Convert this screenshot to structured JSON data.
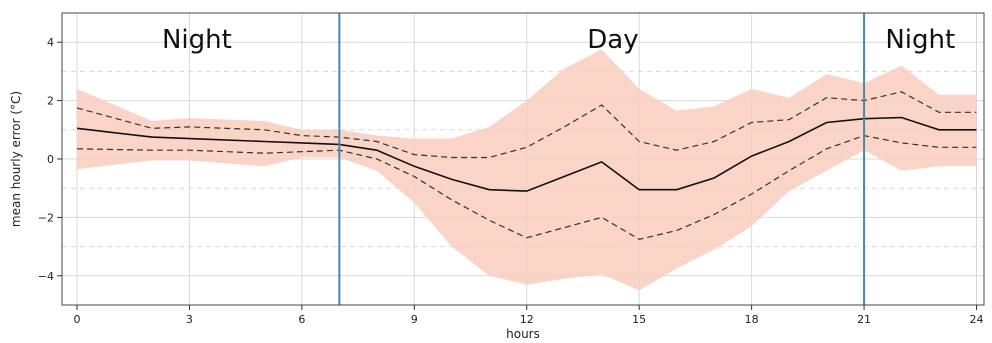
{
  "chart_data": {
    "type": "line",
    "xlabel": "hours",
    "ylabel": "mean hourly error (°C)",
    "xlim": [
      -0.4,
      24.2
    ],
    "ylim": [
      -5,
      5
    ],
    "xticks": [
      0,
      3,
      6,
      9,
      12,
      15,
      18,
      21,
      24
    ],
    "yticks": [
      -4,
      -2,
      0,
      2,
      4
    ],
    "grid": true,
    "x": [
      0,
      2,
      3,
      5,
      6,
      7,
      8,
      9,
      10,
      11,
      12,
      13,
      14,
      15,
      16,
      17,
      18,
      19,
      20,
      21,
      22,
      23,
      24
    ],
    "series": [
      {
        "role": "mean",
        "style": "solid",
        "color": "#111111",
        "values": [
          1.05,
          0.75,
          0.7,
          0.6,
          0.55,
          0.5,
          0.3,
          -0.25,
          -0.7,
          -1.05,
          -1.1,
          -0.6,
          -0.1,
          -1.05,
          -1.05,
          -0.65,
          0.1,
          0.6,
          1.25,
          1.38,
          1.42,
          1.0,
          1.0
        ]
      },
      {
        "role": "upper",
        "style": "dashed",
        "color": "#333333",
        "values": [
          1.75,
          1.05,
          1.1,
          1.0,
          0.8,
          0.75,
          0.6,
          0.15,
          0.05,
          0.05,
          0.4,
          1.1,
          1.85,
          0.6,
          0.3,
          0.6,
          1.25,
          1.35,
          2.1,
          2.0,
          2.3,
          1.6,
          1.6
        ]
      },
      {
        "role": "lower",
        "style": "dashed",
        "color": "#333333",
        "values": [
          0.35,
          0.3,
          0.3,
          0.2,
          0.25,
          0.3,
          0.0,
          -0.6,
          -1.4,
          -2.1,
          -2.7,
          -2.35,
          -2.0,
          -2.75,
          -2.45,
          -1.9,
          -1.2,
          -0.4,
          0.35,
          0.8,
          0.55,
          0.4,
          0.4
        ]
      }
    ],
    "band": {
      "color": "#f9cdbd",
      "upper": [
        2.4,
        1.3,
        1.4,
        1.3,
        1.0,
        1.0,
        0.8,
        0.7,
        0.7,
        1.1,
        2.0,
        3.1,
        3.75,
        2.4,
        1.65,
        1.8,
        2.4,
        2.1,
        2.9,
        2.6,
        3.2,
        2.2,
        2.2
      ],
      "lower": [
        -0.35,
        -0.05,
        -0.05,
        -0.25,
        0.05,
        0.05,
        -0.4,
        -1.5,
        -3.0,
        -4.0,
        -4.3,
        -4.1,
        -3.95,
        -4.5,
        -3.75,
        -3.1,
        -2.3,
        -1.1,
        -0.4,
        0.3,
        -0.4,
        -0.25,
        -0.25
      ]
    },
    "vlines": {
      "x": [
        7,
        21
      ],
      "color": "#4a86a8"
    },
    "regions": [
      {
        "label": "Night",
        "x": 3.2
      },
      {
        "label": "Day",
        "x": 14.3
      },
      {
        "label": "Night",
        "x": 22.5
      }
    ],
    "colors": {
      "grid": "#d9d9d9",
      "frame": "#444444"
    }
  }
}
